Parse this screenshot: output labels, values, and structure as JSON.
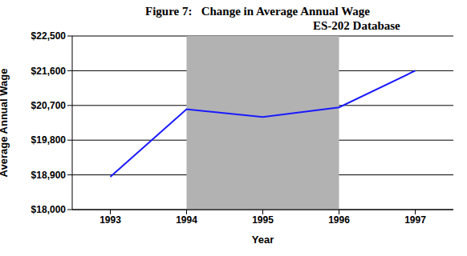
{
  "chart_data": {
    "type": "line",
    "title": "Figure 7:   Change in Average Annual Wage",
    "subtitle": "ES-202 Database",
    "x_label": "Year",
    "y_label": "Average Annual Wage",
    "x": [
      1993,
      1994,
      1995,
      1996,
      1997
    ],
    "values": [
      18850,
      20600,
      20400,
      20650,
      21600
    ],
    "color": "#1a1aff",
    "xlim": [
      1992.5,
      1997.5
    ],
    "xticks": [
      1993,
      1994,
      1995,
      1996,
      1997
    ],
    "ylim": [
      18000,
      22500
    ],
    "yticks": [
      {
        "value": 18000,
        "label": "$18,000"
      },
      {
        "value": 18900,
        "label": "$18,900"
      },
      {
        "value": 19800,
        "label": "$19,800"
      },
      {
        "value": 20700,
        "label": "$20,700"
      },
      {
        "value": 21600,
        "label": "$21,600"
      },
      {
        "value": 22500,
        "label": "$22,500"
      }
    ],
    "grid": true,
    "highlight": {
      "x": [
        1994,
        1996
      ],
      "color": "#b2b2b2"
    }
  }
}
